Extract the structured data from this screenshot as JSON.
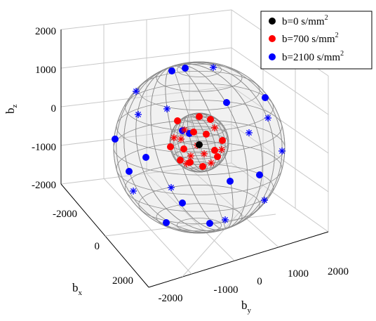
{
  "chart_data": {
    "type": "scatter3d",
    "title": "",
    "axes": {
      "x": {
        "label": "b",
        "sub": "x",
        "ticks": [
          "-2000",
          "0",
          "2000"
        ]
      },
      "y": {
        "label": "b",
        "sub": "y",
        "ticks": [
          "-2000",
          "-1000",
          "0",
          "1000",
          "2000"
        ]
      },
      "z": {
        "label": "b",
        "sub": "z",
        "ticks": [
          "2000",
          "1000",
          "0",
          "-1000",
          "-2000"
        ]
      }
    },
    "legend": {
      "placement": "top-right",
      "entries": [
        {
          "text": "b=0 s/mm",
          "sup": "2",
          "color": "#000000"
        },
        {
          "text": "b=700 s/mm",
          "sup": "2",
          "color": "#ff0000"
        },
        {
          "text": "b=2100 s/mm",
          "sup": "2",
          "color": "#0000ff"
        }
      ]
    },
    "shells": [
      {
        "b_value": 700,
        "color": "#ff0000"
      },
      {
        "b_value": 2100,
        "color": "#0000ff"
      }
    ],
    "colors": {
      "b0": "#000000",
      "b700": "#ff0000",
      "b2100": "#0000ff",
      "mesh": "#8c8c8c"
    }
  }
}
